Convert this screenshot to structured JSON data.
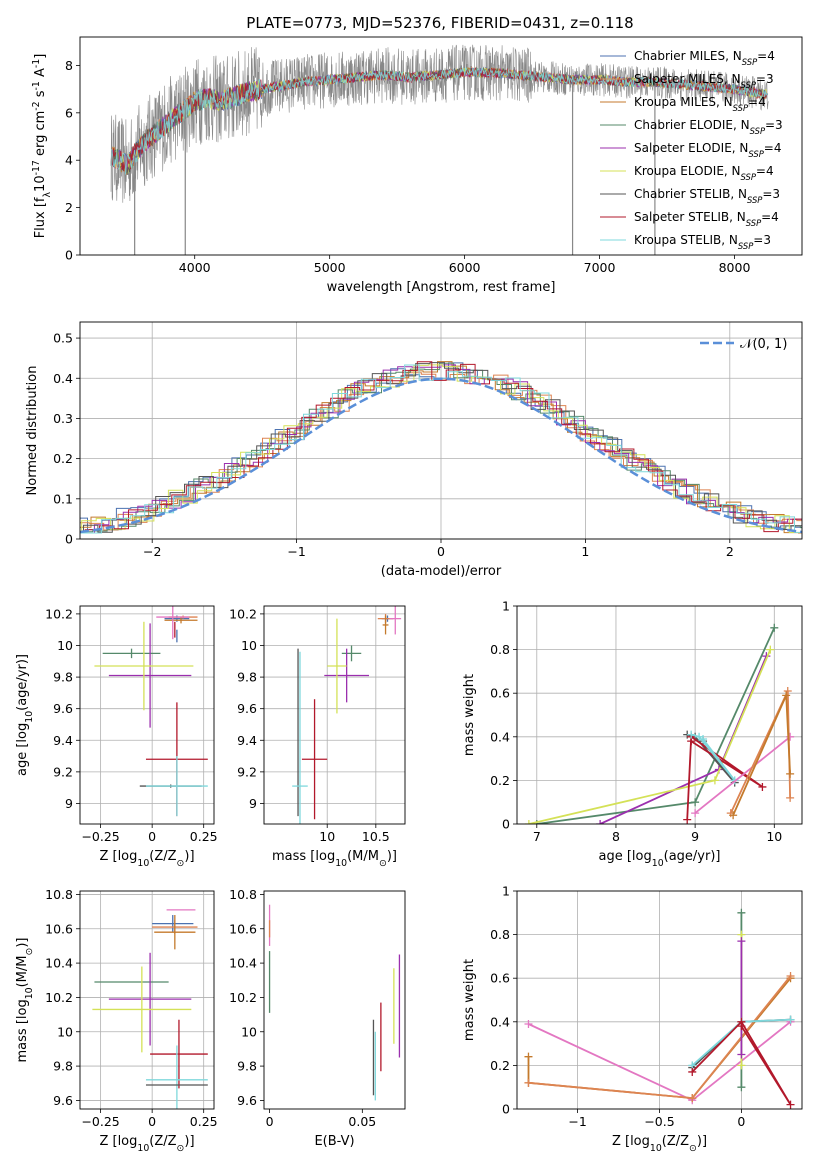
{
  "figure": {
    "title": "PLATE=0773, MJD=52376, FIBERID=0431, z=0.118"
  },
  "colors": {
    "Chabrier MILES": "#4c72b0",
    "Salpeter MILES": "#dd8452",
    "Kroupa MILES": "#c47a2c",
    "Chabrier ELODIE": "#55896a",
    "Salpeter ELODIE": "#9b2fae",
    "Kroupa ELODIE": "#d4e157",
    "Chabrier STELIB": "#555555",
    "Salpeter STELIB": "#b2182b",
    "Kroupa STELIB": "#7fd8dc",
    "pink": "#e377c2",
    "normal": "#5a8fd8",
    "grid": "#b0b0b0"
  },
  "chart_data": [
    {
      "id": "spectrum",
      "type": "line",
      "title": "PLATE=0773, MJD=52376, FIBERID=0431, z=0.118",
      "xlabel": "wavelength [Angstrom, rest frame]",
      "ylabel": "Flux [f$_\\lambda$10$^{-17}$ erg cm$^{-2}$ s$^{-1}$ A$^{-1}$]",
      "xlim": [
        3150,
        8500
      ],
      "ylim": [
        0,
        9.2
      ],
      "xticks": [
        4000,
        5000,
        6000,
        7000,
        8000
      ],
      "yticks": [
        0,
        2,
        4,
        6,
        8
      ],
      "grid": false,
      "legend_position": "upper-right",
      "legend": [
        {
          "label": "Chabrier MILES, N",
          "sub": "SSP",
          "tail": "=4",
          "key": "Chabrier MILES"
        },
        {
          "label": "Salpeter MILES, N",
          "sub": "SSP",
          "tail": "=3",
          "key": "Salpeter MILES"
        },
        {
          "label": "Kroupa MILES, N",
          "sub": "SSP",
          "tail": "=4",
          "key": "Kroupa MILES"
        },
        {
          "label": "Chabrier ELODIE, N",
          "sub": "SSP",
          "tail": "=3",
          "key": "Chabrier ELODIE"
        },
        {
          "label": "Salpeter ELODIE, N",
          "sub": "SSP",
          "tail": "=4",
          "key": "Salpeter ELODIE"
        },
        {
          "label": "Kroupa ELODIE, N",
          "sub": "SSP",
          "tail": "=4",
          "key": "Kroupa ELODIE"
        },
        {
          "label": "Chabrier STELIB, N",
          "sub": "SSP",
          "tail": "=3",
          "key": "Chabrier STELIB"
        },
        {
          "label": "Salpeter STELIB, N",
          "sub": "SSP",
          "tail": "=4",
          "key": "Salpeter STELIB"
        },
        {
          "label": "Kroupa STELIB, N",
          "sub": "SSP",
          "tail": "=3",
          "key": "Kroupa STELIB"
        }
      ],
      "continuum": {
        "x": [
          3380,
          3500,
          3600,
          3700,
          3800,
          3900,
          4000,
          4100,
          4200,
          4300,
          4400,
          4500,
          4600,
          4800,
          5000,
          5200,
          5400,
          5600,
          5800,
          6000,
          6200,
          6400,
          6600,
          6800,
          7000,
          7200,
          7400,
          7600,
          7800,
          8000,
          8200
        ],
        "y": [
          4.2,
          3.8,
          4.6,
          5.1,
          5.6,
          6.0,
          6.5,
          6.6,
          6.5,
          6.7,
          6.9,
          7.0,
          7.1,
          7.3,
          7.4,
          7.5,
          7.6,
          7.5,
          7.6,
          7.7,
          7.7,
          7.6,
          7.5,
          7.4,
          7.4,
          7.3,
          7.3,
          7.2,
          7.1,
          7.0,
          6.8
        ]
      },
      "dips": [
        {
          "x": 3555,
          "y": 0
        },
        {
          "x": 3930,
          "y": 0
        },
        {
          "x": 6800,
          "y": 0
        },
        {
          "x": 7410,
          "y": 0
        }
      ]
    },
    {
      "id": "residuals",
      "type": "line",
      "xlabel": "(data-model)/error",
      "ylabel": "Normed distribution",
      "xlim": [
        -2.5,
        2.5
      ],
      "ylim": [
        0,
        0.54
      ],
      "xticks": [
        -2,
        -1,
        0,
        1,
        2
      ],
      "yticks": [
        0.0,
        0.1,
        0.2,
        0.3,
        0.4,
        0.5
      ],
      "grid": true,
      "legend_position": "upper-right",
      "legend": [
        {
          "label": "𝒩(0, 1)",
          "key": "normal"
        }
      ],
      "normal": {
        "mean": 0,
        "sigma": 1
      }
    },
    {
      "id": "age_vs_Z",
      "type": "scatter",
      "xlabel": "Z [log$_{10}$(Z/Z$_\\odot$)]",
      "ylabel": "age  [log$_{10}$(age/yr)]",
      "xlim": [
        -0.35,
        0.3
      ],
      "ylim": [
        8.87,
        10.25
      ],
      "xticks": [
        -0.25,
        0.0,
        0.25
      ],
      "yticks": [
        9.0,
        9.2,
        9.4,
        9.6,
        9.8,
        10.0,
        10.2
      ],
      "grid": true,
      "errorbars": [
        {
          "key": "Chabrier MILES",
          "x": 0.12,
          "y": 10.17,
          "xerr": 0.06,
          "yerr": 0.02
        },
        {
          "key": "Salpeter MILES",
          "x": 0.15,
          "y": 10.18,
          "xerr": 0.07,
          "yerr": 0.01
        },
        {
          "key": "Kroupa MILES",
          "x": 0.14,
          "y": 10.16,
          "xerr": 0.08,
          "yerr": 0.02
        },
        {
          "key": "pink",
          "x": 0.1,
          "y": 10.18,
          "xerr": 0.08,
          "yerr": 0.14
        },
        {
          "key": "Chabrier ELODIE",
          "x": -0.1,
          "y": 9.95,
          "xerr": 0.14,
          "yerr": 0.03
        },
        {
          "key": "Salpeter ELODIE",
          "x": -0.01,
          "y": 9.81,
          "xerr": 0.2,
          "yerr": 0.33
        },
        {
          "key": "Kroupa ELODIE",
          "x": -0.04,
          "y": 9.87,
          "xerr": 0.24,
          "yerr": 0.28
        },
        {
          "key": "Chabrier STELIB",
          "x": 0.09,
          "y": 9.11,
          "xerr": 0.15,
          "yerr": 0.01
        },
        {
          "key": "Salpeter STELIB",
          "x": 0.12,
          "y": 9.28,
          "xerr": 0.15,
          "yerr": 0.36
        },
        {
          "key": "Kroupa STELIB",
          "x": 0.12,
          "y": 9.11,
          "xerr": 0.15,
          "yerr": 0.19
        },
        {
          "key": "Chabrier MILES",
          "x": 0.12,
          "y": 10.06,
          "xerr": 0.0,
          "yerr": 0.04
        },
        {
          "key": "Salpeter STELIB",
          "x": 0.11,
          "y": 10.1,
          "xerr": 0.0,
          "yerr": 0.05
        }
      ]
    },
    {
      "id": "age_vs_mass",
      "type": "scatter",
      "xlabel": "mass [log$_{10}$(M/M$_\\odot$)]",
      "ylabel": "",
      "xlim": [
        9.35,
        10.8
      ],
      "ylim": [
        8.87,
        10.25
      ],
      "xticks": [
        10.0,
        10.5
      ],
      "yticks": [
        9.0,
        9.2,
        9.4,
        9.6,
        9.8,
        10.0,
        10.2
      ],
      "grid": true,
      "errorbars": [
        {
          "key": "Chabrier MILES",
          "x": 10.62,
          "y": 10.17,
          "xerr": 0.06,
          "yerr": 0.02
        },
        {
          "key": "Salpeter MILES",
          "x": 10.6,
          "y": 10.17,
          "xerr": 0.08,
          "yerr": 0.03
        },
        {
          "key": "pink",
          "x": 10.7,
          "y": 10.17,
          "xerr": 0.06,
          "yerr": 0.1
        },
        {
          "key": "Kroupa MILES",
          "x": 10.6,
          "y": 10.13,
          "xerr": 0.03,
          "yerr": 0.06
        },
        {
          "key": "Chabrier ELODIE",
          "x": 10.25,
          "y": 9.95,
          "xerr": 0.1,
          "yerr": 0.05
        },
        {
          "key": "Salpeter ELODIE",
          "x": 10.2,
          "y": 9.81,
          "xerr": 0.23,
          "yerr": 0.17
        },
        {
          "key": "Kroupa ELODIE",
          "x": 10.1,
          "y": 9.87,
          "xerr": 0.1,
          "yerr": 0.3
        },
        {
          "key": "Chabrier STELIB",
          "x": 9.7,
          "y": 9.45,
          "xerr": 0.0,
          "yerr": 0.53
        },
        {
          "key": "Salpeter STELIB",
          "x": 9.87,
          "y": 9.28,
          "xerr": 0.13,
          "yerr": 0.38
        },
        {
          "key": "Kroupa STELIB",
          "x": 9.72,
          "y": 9.11,
          "xerr": 0.08,
          "yerr": 0.85
        }
      ]
    },
    {
      "id": "weight_vs_age",
      "type": "line",
      "xlabel": "age  [log$_{10}$(age/yr)]",
      "ylabel": "mass weight",
      "xlim": [
        6.75,
        10.35
      ],
      "ylim": [
        0,
        1
      ],
      "xticks": [
        7,
        8,
        9,
        10
      ],
      "yticks": [
        0.0,
        0.2,
        0.4,
        0.6,
        0.8,
        1.0
      ],
      "grid": true,
      "series": [
        {
          "key": "Chabrier ELODIE",
          "x": [
            7.0,
            9.0,
            10.0
          ],
          "y": [
            0.0,
            0.1,
            0.9
          ]
        },
        {
          "key": "Salpeter ELODIE",
          "x": [
            7.8,
            9.3,
            9.9
          ],
          "y": [
            0.0,
            0.25,
            0.77
          ]
        },
        {
          "key": "Kroupa ELODIE",
          "x": [
            6.9,
            9.25,
            9.95
          ],
          "y": [
            0.0,
            0.2,
            0.8
          ]
        },
        {
          "key": "Chabrier STELIB",
          "x": [
            8.9,
            9.0,
            9.5,
            9.1
          ],
          "y": [
            0.41,
            0.4,
            0.19,
            0.38
          ]
        },
        {
          "key": "Salpeter STELIB",
          "x": [
            8.9,
            8.95,
            9.85,
            8.95
          ],
          "y": [
            0.02,
            0.4,
            0.17,
            0.38
          ]
        },
        {
          "key": "Kroupa STELIB",
          "x": [
            8.95,
            9.05,
            9.5,
            9.1
          ],
          "y": [
            0.41,
            0.4,
            0.2,
            0.39
          ]
        },
        {
          "key": "pink",
          "x": [
            9.0,
            10.2
          ],
          "y": [
            0.05,
            0.4
          ]
        },
        {
          "key": "Salpeter MILES",
          "x": [
            9.45,
            10.17,
            10.2
          ],
          "y": [
            0.05,
            0.61,
            0.12
          ]
        },
        {
          "key": "Kroupa MILES",
          "x": [
            9.48,
            10.15,
            10.2
          ],
          "y": [
            0.04,
            0.59,
            0.23
          ]
        }
      ]
    },
    {
      "id": "mass_vs_Z",
      "type": "scatter",
      "xlabel": "Z [log$_{10}$(Z/Z$_\\odot$)]",
      "ylabel": "mass [log$_{10}$(M/M$_\\odot$)]",
      "xlim": [
        -0.35,
        0.3
      ],
      "ylim": [
        9.55,
        10.82
      ],
      "xticks": [
        -0.25,
        0.0,
        0.25
      ],
      "yticks": [
        9.6,
        9.8,
        10.0,
        10.2,
        10.4,
        10.6,
        10.8
      ],
      "grid": true,
      "errorbars": [
        {
          "key": "pink",
          "x": 0.14,
          "y": 10.71,
          "xerr": 0.07,
          "yerr": 0.0
        },
        {
          "key": "Chabrier MILES",
          "x": 0.1,
          "y": 10.63,
          "xerr": 0.1,
          "yerr": 0.05
        },
        {
          "key": "Salpeter MILES",
          "x": 0.11,
          "y": 10.61,
          "xerr": 0.11,
          "yerr": 0.04
        },
        {
          "key": "Kroupa MILES",
          "x": 0.11,
          "y": 10.58,
          "xerr": 0.1,
          "yerr": 0.1
        },
        {
          "key": "Chabrier ELODIE",
          "x": -0.1,
          "y": 10.29,
          "xerr": 0.18,
          "yerr": 0.0
        },
        {
          "key": "Salpeter ELODIE",
          "x": -0.01,
          "y": 10.19,
          "xerr": 0.2,
          "yerr": 0.27
        },
        {
          "key": "Kroupa ELODIE",
          "x": -0.05,
          "y": 10.13,
          "xerr": 0.24,
          "yerr": 0.25
        },
        {
          "key": "Salpeter STELIB",
          "x": 0.13,
          "y": 9.87,
          "xerr": 0.14,
          "yerr": 0.2
        },
        {
          "key": "Kroupa STELIB",
          "x": 0.12,
          "y": 9.72,
          "xerr": 0.15,
          "yerr": 0.2
        },
        {
          "key": "Chabrier STELIB",
          "x": 0.12,
          "y": 9.69,
          "xerr": 0.15,
          "yerr": 0.0
        }
      ]
    },
    {
      "id": "mass_vs_ebv",
      "type": "scatter",
      "xlabel": "E(B-V)",
      "ylabel": "",
      "xlim": [
        -0.003,
        0.073
      ],
      "ylim": [
        9.55,
        10.82
      ],
      "xticks": [
        0.0,
        0.05
      ],
      "yticks": [
        9.6,
        9.8,
        10.0,
        10.2,
        10.4,
        10.6,
        10.8
      ],
      "grid": false,
      "errorbars": [
        {
          "key": "pink",
          "x": 0.0,
          "y": 10.62,
          "xerr": 0.0,
          "yerr": 0.12
        },
        {
          "key": "Salpeter MILES",
          "x": 0.0,
          "y": 10.6,
          "xerr": 0.0,
          "yerr": 0.05
        },
        {
          "key": "Chabrier ELODIE",
          "x": 0.0,
          "y": 10.29,
          "xerr": 0.0,
          "yerr": 0.18
        },
        {
          "key": "Kroupa STELIB",
          "x": 0.057,
          "y": 9.8,
          "xerr": 0.0,
          "yerr": 0.2
        },
        {
          "key": "Chabrier STELIB",
          "x": 0.056,
          "y": 9.85,
          "xerr": 0.0,
          "yerr": 0.22
        },
        {
          "key": "Salpeter STELIB",
          "x": 0.06,
          "y": 9.97,
          "xerr": 0.0,
          "yerr": 0.2
        },
        {
          "key": "Kroupa ELODIE",
          "x": 0.067,
          "y": 10.15,
          "xerr": 0.0,
          "yerr": 0.22
        },
        {
          "key": "Salpeter ELODIE",
          "x": 0.07,
          "y": 10.15,
          "xerr": 0.0,
          "yerr": 0.3
        }
      ]
    },
    {
      "id": "weight_vs_Z",
      "type": "line",
      "xlabel": "Z [log$_{10}$(Z/Z$_\\odot$)]",
      "ylabel": "mass weight",
      "xlim": [
        -1.37,
        0.37
      ],
      "ylim": [
        0,
        1
      ],
      "xticks": [
        -1.0,
        -0.5,
        0.0
      ],
      "yticks": [
        0.0,
        0.2,
        0.4,
        0.6,
        0.8,
        1.0
      ],
      "grid": true,
      "series": [
        {
          "key": "pink",
          "x": [
            -1.3,
            -0.3,
            0.3
          ],
          "y": [
            0.39,
            0.04,
            0.4
          ]
        },
        {
          "key": "Kroupa MILES",
          "x": [
            -1.3,
            -1.3,
            -0.3,
            0.3
          ],
          "y": [
            0.24,
            0.12,
            0.05,
            0.6
          ]
        },
        {
          "key": "Salpeter MILES",
          "x": [
            -1.3,
            -0.3,
            0.3
          ],
          "y": [
            0.12,
            0.05,
            0.61
          ]
        },
        {
          "key": "Chabrier ELODIE",
          "x": [
            0.0,
            0.0
          ],
          "y": [
            0.9,
            0.1
          ]
        },
        {
          "key": "Kroupa ELODIE",
          "x": [
            0.0,
            0.0
          ],
          "y": [
            0.8,
            0.2
          ]
        },
        {
          "key": "Salpeter ELODIE",
          "x": [
            0.0,
            0.0
          ],
          "y": [
            0.77,
            0.25
          ]
        },
        {
          "key": "Chabrier STELIB",
          "x": [
            -0.3,
            0.0,
            0.3
          ],
          "y": [
            0.19,
            0.4,
            0.41
          ]
        },
        {
          "key": "Kroupa STELIB",
          "x": [
            -0.3,
            0.0,
            0.3
          ],
          "y": [
            0.2,
            0.4,
            0.41
          ]
        },
        {
          "key": "Salpeter STELIB",
          "x": [
            -0.3,
            0.0,
            0.3,
            0.0
          ],
          "y": [
            0.17,
            0.4,
            0.02,
            0.38
          ]
        }
      ]
    }
  ]
}
